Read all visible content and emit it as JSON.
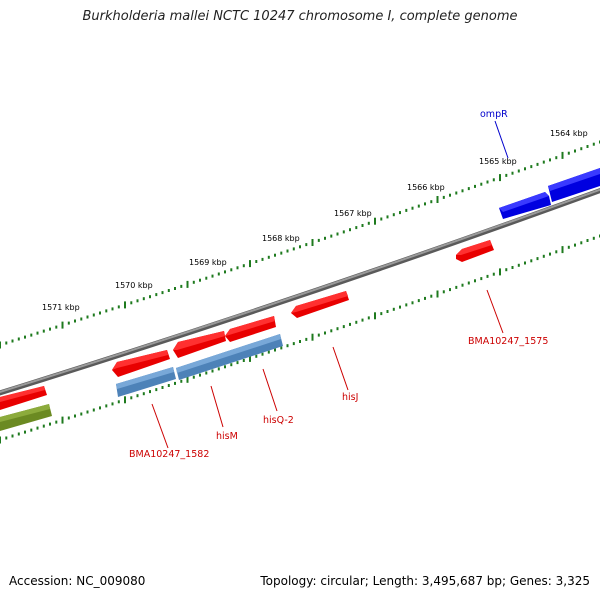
{
  "title": "Burkholderia mallei NCTC 10247 chromosome I, complete genome",
  "footer": {
    "accession": "Accession: NC_009080",
    "summary": "Topology: circular; Length: 3,495,687 bp; Genes: 3,325"
  },
  "colors": {
    "backbone": "#7a7a7a",
    "tick": "#1e7a1e",
    "forward_gene": "#0000e0",
    "reverse_gene": "#e80000",
    "pseudo_gene": "#4d82b8",
    "other_gene": "#6b8a22",
    "label_red": "#cc0000",
    "label_blue": "#0000cc"
  },
  "kbp_ticks": [
    "1564 kbp",
    "1565 kbp",
    "1566 kbp",
    "1567 kbp",
    "1568 kbp",
    "1569 kbp",
    "1570 kbp",
    "1571 kbp"
  ],
  "features": [
    {
      "name": "ompR",
      "strand": "forward",
      "type": "cds"
    },
    {
      "name": "BMA10247_1575",
      "strand": "reverse",
      "type": "cds"
    },
    {
      "name": "hisJ",
      "strand": "reverse",
      "type": "cds"
    },
    {
      "name": "hisQ-2",
      "strand": "reverse",
      "type": "cds"
    },
    {
      "name": "hisM",
      "strand": "reverse",
      "type": "cds"
    },
    {
      "name": "BMA10247_1582",
      "strand": "reverse",
      "type": "cds"
    }
  ]
}
